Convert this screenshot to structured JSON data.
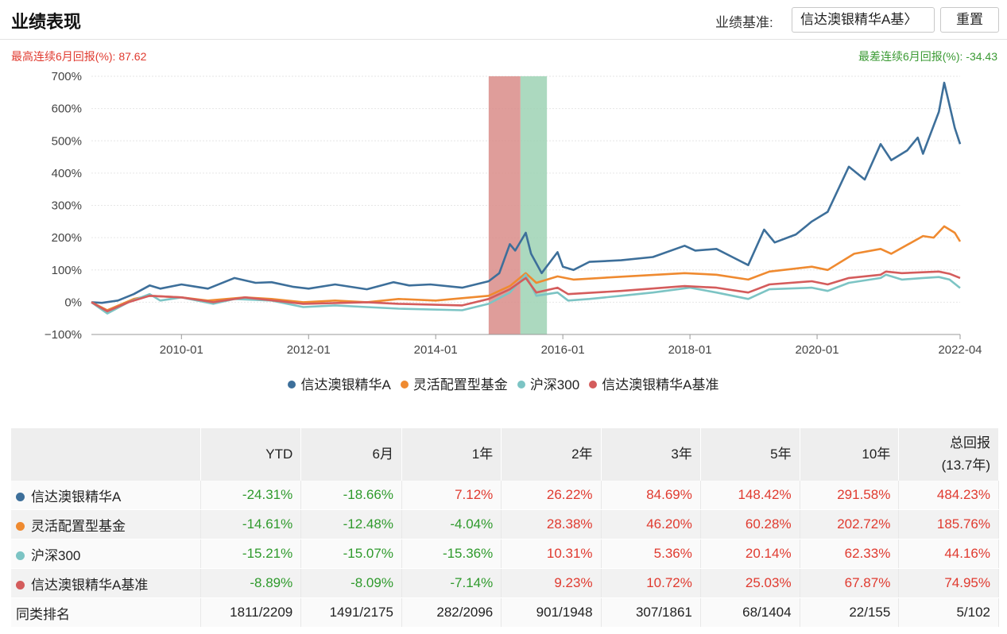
{
  "header": {
    "title": "业绩表现",
    "benchmark_label": "业绩基准:",
    "benchmark_value": "信达澳银精华A基〉",
    "reset_label": "重置"
  },
  "stats": {
    "best6m": "最高连续6月回报(%):  87.62",
    "worst6m": "最差连续6月回报(%): -34.43"
  },
  "colors": {
    "fund": "#3d6f9a",
    "category": "#ef8a30",
    "hs300": "#7cc4c4",
    "benchmark": "#d45c5c",
    "band_worst": "#d98c88",
    "band_best": "#9ed2b4",
    "positive": "#e03a2f",
    "negative": "#2f9a2c"
  },
  "chart_data": {
    "type": "line",
    "y_unit": "%",
    "ylim": [
      -100,
      700
    ],
    "yticks": [
      -100,
      0,
      100,
      200,
      300,
      400,
      500,
      600,
      700
    ],
    "ytick_labels": [
      "−100%",
      "0%",
      "100%",
      "200%",
      "300%",
      "400%",
      "500%",
      "600%",
      "700%"
    ],
    "xlim": [
      "2008-08",
      "2022-04"
    ],
    "xticks": [
      "2010-01",
      "2012-01",
      "2014-01",
      "2016-01",
      "2018-01",
      "2020-01",
      "2022-04"
    ],
    "grid": true,
    "legend_position": "bottom",
    "shaded_periods": [
      {
        "start": "2014-11",
        "end": "2015-05",
        "color_key": "band_worst"
      },
      {
        "start": "2015-05",
        "end": "2015-10",
        "color_key": "band_best"
      }
    ],
    "series": [
      {
        "name": "信达澳银精华A",
        "color_key": "fund",
        "points": [
          [
            "2008-08",
            0
          ],
          [
            "2008-10",
            -2
          ],
          [
            "2009-01",
            5
          ],
          [
            "2009-04",
            25
          ],
          [
            "2009-07",
            52
          ],
          [
            "2009-09",
            42
          ],
          [
            "2010-01",
            55
          ],
          [
            "2010-06",
            42
          ],
          [
            "2010-11",
            75
          ],
          [
            "2011-03",
            60
          ],
          [
            "2011-06",
            62
          ],
          [
            "2011-10",
            48
          ],
          [
            "2012-01",
            42
          ],
          [
            "2012-06",
            55
          ],
          [
            "2012-12",
            40
          ],
          [
            "2013-05",
            62
          ],
          [
            "2013-08",
            52
          ],
          [
            "2013-12",
            55
          ],
          [
            "2014-06",
            45
          ],
          [
            "2014-11",
            65
          ],
          [
            "2015-01",
            90
          ],
          [
            "2015-03",
            180
          ],
          [
            "2015-04",
            160
          ],
          [
            "2015-06",
            215
          ],
          [
            "2015-07",
            150
          ],
          [
            "2015-09",
            90
          ],
          [
            "2015-12",
            155
          ],
          [
            "2016-01",
            110
          ],
          [
            "2016-03",
            100
          ],
          [
            "2016-06",
            125
          ],
          [
            "2016-12",
            130
          ],
          [
            "2017-06",
            140
          ],
          [
            "2017-12",
            175
          ],
          [
            "2018-02",
            160
          ],
          [
            "2018-06",
            165
          ],
          [
            "2018-09",
            140
          ],
          [
            "2018-12",
            115
          ],
          [
            "2019-03",
            225
          ],
          [
            "2019-05",
            185
          ],
          [
            "2019-09",
            210
          ],
          [
            "2019-12",
            250
          ],
          [
            "2020-03",
            280
          ],
          [
            "2020-07",
            420
          ],
          [
            "2020-10",
            380
          ],
          [
            "2021-01",
            490
          ],
          [
            "2021-03",
            440
          ],
          [
            "2021-06",
            470
          ],
          [
            "2021-08",
            510
          ],
          [
            "2021-09",
            460
          ],
          [
            "2021-12",
            590
          ],
          [
            "2022-01",
            680
          ],
          [
            "2022-02",
            610
          ],
          [
            "2022-03",
            540
          ],
          [
            "2022-04",
            490
          ]
        ]
      },
      {
        "name": "灵活配置型基金",
        "color_key": "category",
        "points": [
          [
            "2008-08",
            0
          ],
          [
            "2008-11",
            -25
          ],
          [
            "2009-04",
            10
          ],
          [
            "2009-07",
            20
          ],
          [
            "2010-01",
            15
          ],
          [
            "2010-06",
            5
          ],
          [
            "2011-01",
            15
          ],
          [
            "2011-06",
            10
          ],
          [
            "2011-12",
            0
          ],
          [
            "2012-06",
            5
          ],
          [
            "2012-12",
            0
          ],
          [
            "2013-06",
            10
          ],
          [
            "2014-01",
            5
          ],
          [
            "2014-11",
            20
          ],
          [
            "2015-03",
            50
          ],
          [
            "2015-06",
            90
          ],
          [
            "2015-08",
            60
          ],
          [
            "2015-12",
            80
          ],
          [
            "2016-03",
            70
          ],
          [
            "2017-01",
            80
          ],
          [
            "2017-12",
            90
          ],
          [
            "2018-06",
            85
          ],
          [
            "2018-12",
            70
          ],
          [
            "2019-04",
            95
          ],
          [
            "2019-12",
            110
          ],
          [
            "2020-03",
            100
          ],
          [
            "2020-08",
            150
          ],
          [
            "2021-01",
            165
          ],
          [
            "2021-03",
            150
          ],
          [
            "2021-09",
            205
          ],
          [
            "2021-11",
            200
          ],
          [
            "2022-01",
            235
          ],
          [
            "2022-03",
            215
          ],
          [
            "2022-04",
            188
          ]
        ]
      },
      {
        "name": "沪深300",
        "color_key": "hs300",
        "points": [
          [
            "2008-08",
            0
          ],
          [
            "2008-11",
            -35
          ],
          [
            "2009-03",
            0
          ],
          [
            "2009-07",
            25
          ],
          [
            "2009-09",
            5
          ],
          [
            "2010-01",
            15
          ],
          [
            "2010-07",
            -5
          ],
          [
            "2010-11",
            10
          ],
          [
            "2011-06",
            5
          ],
          [
            "2011-12",
            -15
          ],
          [
            "2012-06",
            -10
          ],
          [
            "2012-12",
            -15
          ],
          [
            "2013-06",
            -20
          ],
          [
            "2014-06",
            -25
          ],
          [
            "2014-11",
            -5
          ],
          [
            "2015-03",
            30
          ],
          [
            "2015-06",
            85
          ],
          [
            "2015-08",
            20
          ],
          [
            "2015-12",
            30
          ],
          [
            "2016-02",
            5
          ],
          [
            "2016-06",
            10
          ],
          [
            "2016-12",
            20
          ],
          [
            "2017-06",
            30
          ],
          [
            "2018-01",
            45
          ],
          [
            "2018-06",
            30
          ],
          [
            "2018-12",
            10
          ],
          [
            "2019-04",
            40
          ],
          [
            "2019-12",
            45
          ],
          [
            "2020-03",
            35
          ],
          [
            "2020-07",
            60
          ],
          [
            "2021-01",
            75
          ],
          [
            "2021-02",
            85
          ],
          [
            "2021-05",
            70
          ],
          [
            "2021-09",
            75
          ],
          [
            "2021-12",
            78
          ],
          [
            "2022-02",
            70
          ],
          [
            "2022-04",
            44
          ]
        ]
      },
      {
        "name": "信达澳银精华A基准",
        "color_key": "benchmark",
        "points": [
          [
            "2008-08",
            0
          ],
          [
            "2008-11",
            -28
          ],
          [
            "2009-03",
            0
          ],
          [
            "2009-07",
            20
          ],
          [
            "2010-01",
            15
          ],
          [
            "2010-07",
            0
          ],
          [
            "2011-01",
            15
          ],
          [
            "2011-12",
            -5
          ],
          [
            "2012-12",
            0
          ],
          [
            "2013-06",
            -5
          ],
          [
            "2014-06",
            -10
          ],
          [
            "2014-11",
            10
          ],
          [
            "2015-03",
            40
          ],
          [
            "2015-06",
            75
          ],
          [
            "2015-08",
            30
          ],
          [
            "2015-12",
            45
          ],
          [
            "2016-02",
            25
          ],
          [
            "2016-12",
            35
          ],
          [
            "2017-12",
            50
          ],
          [
            "2018-06",
            45
          ],
          [
            "2018-12",
            30
          ],
          [
            "2019-04",
            55
          ],
          [
            "2019-12",
            65
          ],
          [
            "2020-03",
            55
          ],
          [
            "2020-07",
            75
          ],
          [
            "2021-01",
            85
          ],
          [
            "2021-02",
            95
          ],
          [
            "2021-05",
            90
          ],
          [
            "2021-12",
            95
          ],
          [
            "2022-02",
            88
          ],
          [
            "2022-04",
            75
          ]
        ]
      }
    ]
  },
  "table": {
    "headers": [
      "",
      "YTD",
      "6月",
      "1年",
      "2年",
      "3年",
      "5年",
      "10年",
      "总回报\n(13.7年)"
    ],
    "rows": [
      {
        "name": "信达澳银精华A",
        "color_key": "fund",
        "values": [
          "-24.31%",
          "-18.66%",
          "7.12%",
          "26.22%",
          "84.69%",
          "148.42%",
          "291.58%",
          "484.23%"
        ]
      },
      {
        "name": "灵活配置型基金",
        "color_key": "category",
        "values": [
          "-14.61%",
          "-12.48%",
          "-4.04%",
          "28.38%",
          "46.20%",
          "60.28%",
          "202.72%",
          "185.76%"
        ]
      },
      {
        "name": "沪深300",
        "color_key": "hs300",
        "values": [
          "-15.21%",
          "-15.07%",
          "-15.36%",
          "10.31%",
          "5.36%",
          "20.14%",
          "62.33%",
          "44.16%"
        ]
      },
      {
        "name": "信达澳银精华A基准",
        "color_key": "benchmark",
        "values": [
          "-8.89%",
          "-8.09%",
          "-7.14%",
          "9.23%",
          "10.72%",
          "25.03%",
          "67.87%",
          "74.95%"
        ]
      }
    ],
    "rank_row": {
      "name": "同类排名",
      "values": [
        "1811/2209",
        "1491/2175",
        "282/2096",
        "901/1948",
        "307/1861",
        "68/1404",
        "22/155",
        "5/102"
      ]
    }
  }
}
